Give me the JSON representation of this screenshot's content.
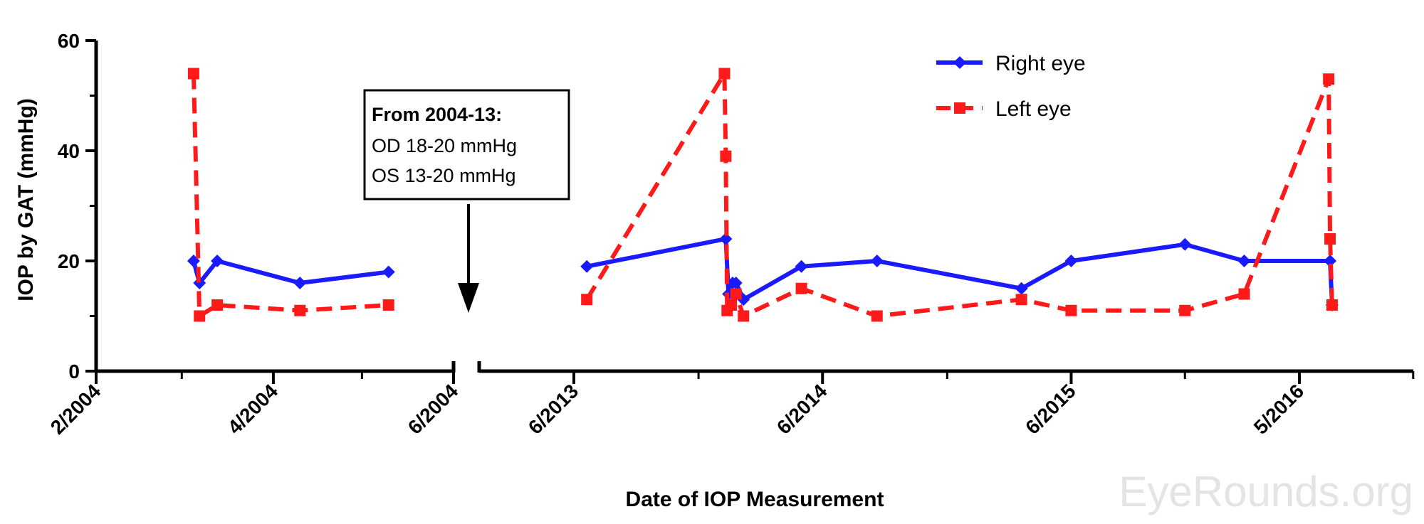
{
  "chart_data": {
    "type": "line",
    "title": "",
    "xlabel": "Date of IOP Measurement",
    "ylabel": "IOP by GAT (mmHg)",
    "ylim": [
      0,
      60
    ],
    "y_ticks": [
      "0",
      "20",
      "40",
      "60"
    ],
    "x_ticks": [
      "2/2004",
      "4/2004",
      "6/2004",
      "6/2013",
      "6/2014",
      "6/2015",
      "5/2016"
    ],
    "axis_break": "between 6/2004 and 6/2013",
    "grid": false,
    "legend_position": "top-right",
    "series": [
      {
        "name": "Right eye",
        "color": "#1a1aff",
        "line_style": "solid",
        "marker": "diamond",
        "points": [
          {
            "segment": 1,
            "x": "2004-03-05",
            "y": 20
          },
          {
            "segment": 1,
            "x": "2004-03-07",
            "y": 16
          },
          {
            "segment": 1,
            "x": "2004-03-13",
            "y": 20
          },
          {
            "segment": 1,
            "x": "2004-04-10",
            "y": 16
          },
          {
            "segment": 1,
            "x": "2004-05-10",
            "y": 18
          },
          {
            "segment": 2,
            "x": "2013-06-20",
            "y": 19
          },
          {
            "segment": 2,
            "x": "2014-01-10",
            "y": 24
          },
          {
            "segment": 2,
            "x": "2014-01-14",
            "y": 14
          },
          {
            "segment": 2,
            "x": "2014-01-20",
            "y": 16
          },
          {
            "segment": 2,
            "x": "2014-01-25",
            "y": 16
          },
          {
            "segment": 2,
            "x": "2014-02-05",
            "y": 13
          },
          {
            "segment": 2,
            "x": "2014-05-01",
            "y": 19
          },
          {
            "segment": 2,
            "x": "2014-08-20",
            "y": 20
          },
          {
            "segment": 2,
            "x": "2015-03-20",
            "y": 15
          },
          {
            "segment": 2,
            "x": "2015-06-01",
            "y": 20
          },
          {
            "segment": 2,
            "x": "2015-11-15",
            "y": 23
          },
          {
            "segment": 2,
            "x": "2016-02-10",
            "y": 20
          },
          {
            "segment": 2,
            "x": "2016-06-15",
            "y": 20
          },
          {
            "segment": 2,
            "x": "2016-06-18",
            "y": 12
          }
        ]
      },
      {
        "name": "Left eye",
        "color": "#ff1a1a",
        "line_style": "dashed",
        "marker": "square",
        "points": [
          {
            "segment": 1,
            "x": "2004-03-05",
            "y": 54
          },
          {
            "segment": 1,
            "x": "2004-03-07",
            "y": 10
          },
          {
            "segment": 1,
            "x": "2004-03-13",
            "y": 12
          },
          {
            "segment": 1,
            "x": "2004-04-10",
            "y": 11
          },
          {
            "segment": 1,
            "x": "2004-05-10",
            "y": 12
          },
          {
            "segment": 2,
            "x": "2013-06-20",
            "y": 13
          },
          {
            "segment": 2,
            "x": "2014-01-08",
            "y": 54
          },
          {
            "segment": 2,
            "x": "2014-01-10",
            "y": 39
          },
          {
            "segment": 2,
            "x": "2014-01-12",
            "y": 11
          },
          {
            "segment": 2,
            "x": "2014-01-18",
            "y": 12
          },
          {
            "segment": 2,
            "x": "2014-01-25",
            "y": 14
          },
          {
            "segment": 2,
            "x": "2014-02-05",
            "y": 10
          },
          {
            "segment": 2,
            "x": "2014-05-01",
            "y": 15
          },
          {
            "segment": 2,
            "x": "2014-08-20",
            "y": 10
          },
          {
            "segment": 2,
            "x": "2015-03-20",
            "y": 13
          },
          {
            "segment": 2,
            "x": "2015-06-01",
            "y": 11
          },
          {
            "segment": 2,
            "x": "2015-11-15",
            "y": 11
          },
          {
            "segment": 2,
            "x": "2016-02-10",
            "y": 14
          },
          {
            "segment": 2,
            "x": "2016-06-13",
            "y": 53
          },
          {
            "segment": 2,
            "x": "2016-06-15",
            "y": 24
          },
          {
            "segment": 2,
            "x": "2016-06-18",
            "y": 12
          }
        ]
      }
    ],
    "annotation": {
      "lines": [
        "From 2004-13:",
        "OD 18-20 mmHg",
        "OS 13-20 mmHg"
      ],
      "arrow": "down"
    },
    "watermark": "EyeRounds.org"
  }
}
